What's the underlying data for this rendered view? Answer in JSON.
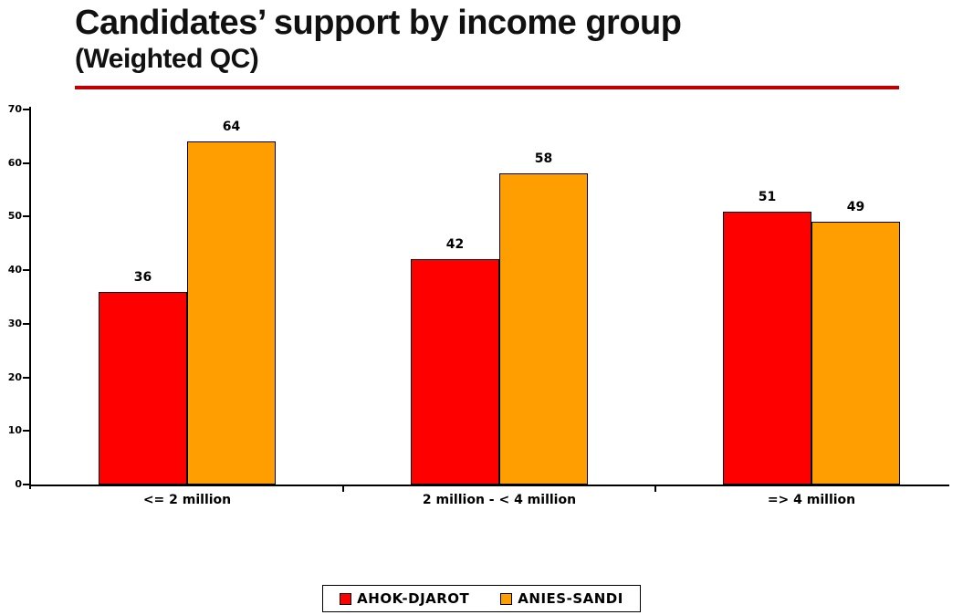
{
  "slide": {
    "title": "Candidates’ support by income group",
    "subtitle": "(Weighted QC)",
    "accent_color": "#C00000",
    "background_color": "#FFFFFF"
  },
  "chart_data": {
    "type": "bar",
    "title": "Candidates’ support by income group (Weighted QC)",
    "categories": [
      "<= 2 million",
      "2 million - < 4 million",
      "=> 4 million"
    ],
    "series": [
      {
        "name": "AHOK-DJAROT",
        "color": "#FF0000",
        "values": [
          36,
          42,
          51
        ]
      },
      {
        "name": "ANIES-SANDI",
        "color": "#FF9E00",
        "values": [
          64,
          58,
          49
        ]
      }
    ],
    "xlabel": "",
    "ylabel": "",
    "ylim": [
      0,
      70
    ],
    "yticks": [
      0,
      10,
      20,
      30,
      40,
      50,
      60,
      70
    ],
    "grid": false,
    "bar_value_labels": true,
    "legend_position": "bottom",
    "axis_color": "#000000",
    "text_color": "#000000"
  }
}
